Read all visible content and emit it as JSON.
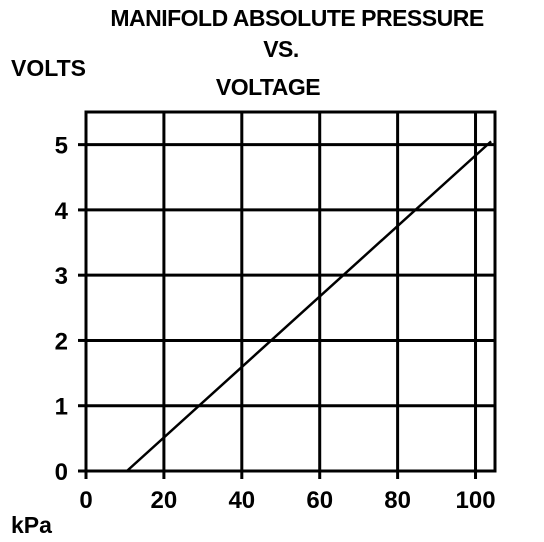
{
  "chart_data": {
    "type": "line",
    "title_lines": [
      "MANIFOLD ABSOLUTE PRESSURE",
      "VS.",
      "VOLTAGE"
    ],
    "xlabel": "kPa",
    "ylabel": "VOLTS",
    "xlim": [
      0,
      105
    ],
    "ylim": [
      0,
      5.5
    ],
    "x_ticks": [
      0,
      20,
      40,
      60,
      80,
      100
    ],
    "y_ticks": [
      0,
      1,
      2,
      3,
      4,
      5
    ],
    "x_tick_labels": [
      "0",
      "20",
      "40",
      "60",
      "80",
      "100"
    ],
    "y_tick_labels": [
      "0",
      "1",
      "2",
      "3",
      "4",
      "5"
    ],
    "grid": true,
    "series": [
      {
        "x": [
          10.5,
          104
        ],
        "y": [
          0,
          5.05
        ]
      }
    ]
  }
}
